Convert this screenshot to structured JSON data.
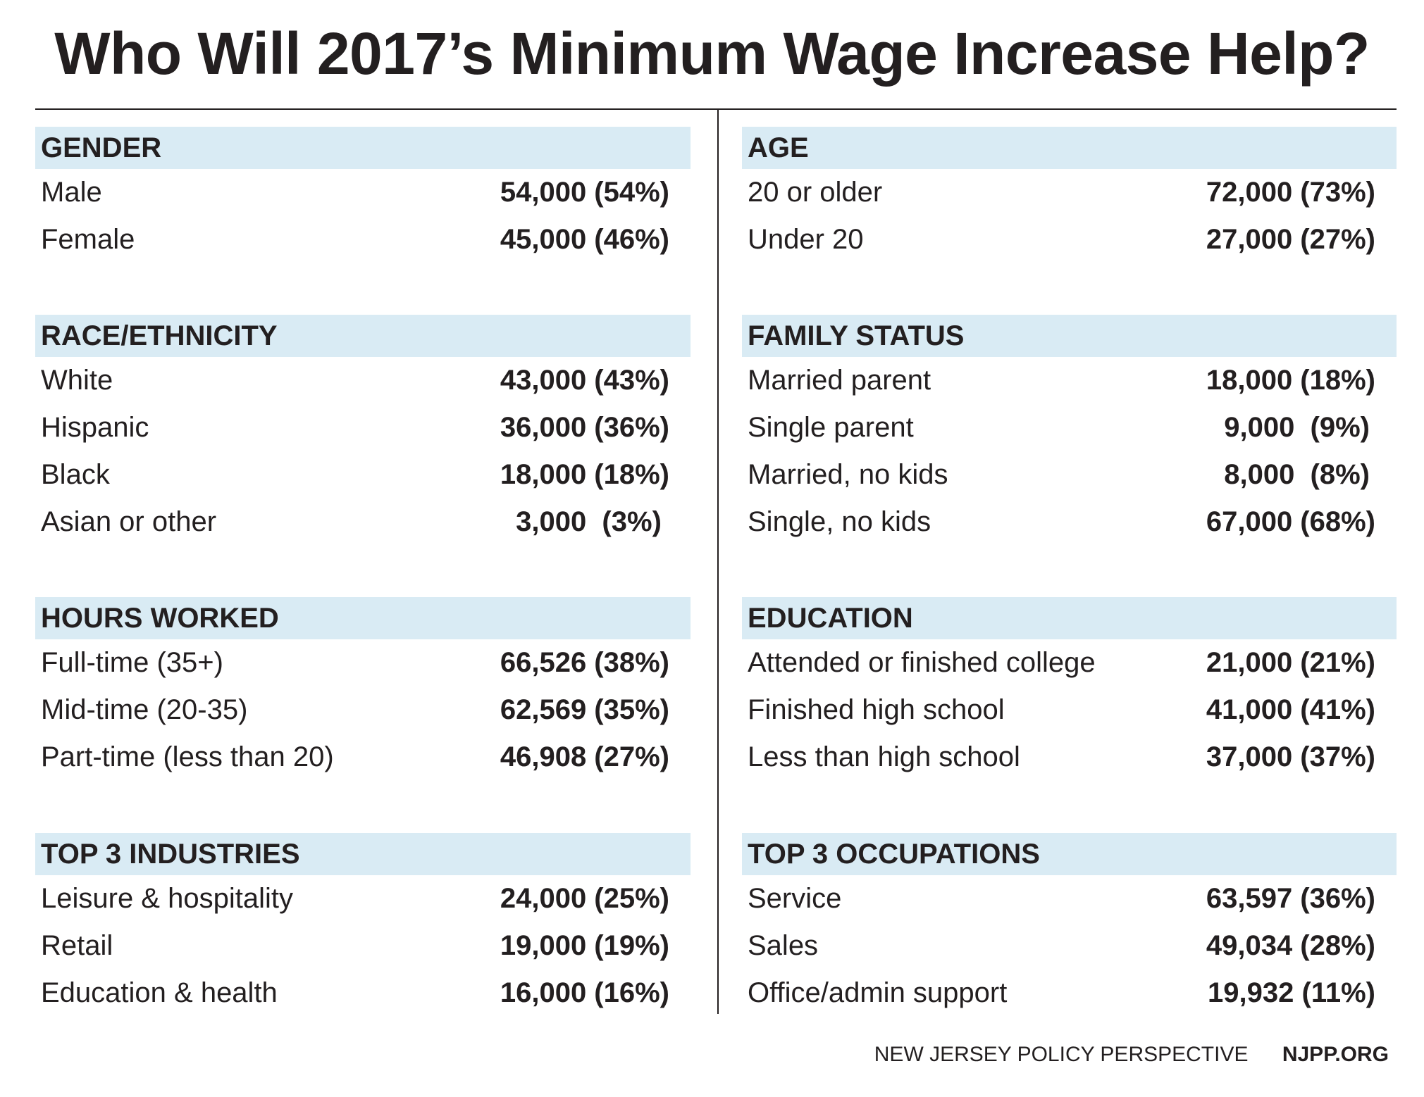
{
  "title": "Who Will 2017’s Minimum Wage Increase Help?",
  "left_sections": [
    {
      "heading": "GENDER",
      "rows": [
        {
          "label": "Male",
          "value": "54,000 (54%)"
        },
        {
          "label": "Female",
          "value": "45,000 (46%)"
        }
      ]
    },
    {
      "heading": "RACE/ETHNICITY",
      "rows": [
        {
          "label": "White",
          "value": "43,000 (43%)"
        },
        {
          "label": "Hispanic",
          "value": "36,000 (36%)"
        },
        {
          "label": "Black",
          "value": "18,000 (18%)"
        },
        {
          "label": "Asian or other",
          "value": "3,000  (3%) "
        }
      ]
    },
    {
      "heading": "HOURS WORKED",
      "rows": [
        {
          "label": "Full-time (35+)",
          "value": "66,526 (38%)"
        },
        {
          "label": "Mid-time (20-35)",
          "value": "62,569 (35%)"
        },
        {
          "label": "Part-time (less than 20)",
          "value": "46,908 (27%)"
        }
      ]
    },
    {
      "heading": "TOP 3 INDUSTRIES",
      "rows": [
        {
          "label": "Leisure & hospitality",
          "value": "24,000 (25%)"
        },
        {
          "label": "Retail",
          "value": "19,000 (19%)"
        },
        {
          "label": "Education & health",
          "value": "16,000 (16%)"
        }
      ]
    }
  ],
  "right_sections": [
    {
      "heading": "AGE",
      "rows": [
        {
          "label": "20 or older",
          "value": "72,000 (73%)"
        },
        {
          "label": "Under 20",
          "value": "27,000 (27%)"
        }
      ]
    },
    {
      "heading": "FAMILY STATUS",
      "rows": [
        {
          "label": "Married parent",
          "value": "18,000 (18%)"
        },
        {
          "label": "Single parent",
          "value": "9,000  (9%)"
        },
        {
          "label": "Married, no kids",
          "value": "8,000  (8%)"
        },
        {
          "label": "Single, no kids",
          "value": "67,000 (68%)"
        }
      ]
    },
    {
      "heading": "EDUCATION",
      "rows": [
        {
          "label": "Attended or finished college",
          "value": "21,000 (21%)"
        },
        {
          "label": "Finished high school",
          "value": "41,000 (41%)"
        },
        {
          "label": "Less than high school",
          "value": "37,000 (37%)"
        }
      ]
    },
    {
      "heading": "TOP 3 OCCUPATIONS",
      "rows": [
        {
          "label": "Service",
          "value": "63,597 (36%)"
        },
        {
          "label": "Sales",
          "value": "49,034 (28%)"
        },
        {
          "label": "Office/admin support",
          "value": "19,932 (11%)"
        }
      ]
    }
  ],
  "footer": {
    "org": "NEW JERSEY POLICY PERSPECTIVE",
    "site": "NJPP.ORG"
  },
  "colors": {
    "section_header_bg": "#d9ebf4",
    "text": "#231f20"
  }
}
